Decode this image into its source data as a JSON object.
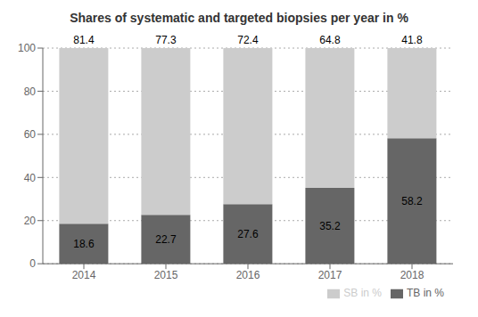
{
  "chart_data": {
    "type": "bar",
    "title": "Shares of systematic and targeted biopsies per year in %",
    "categories": [
      "2014",
      "2015",
      "2016",
      "2017",
      "2018"
    ],
    "series": [
      {
        "name": "TB in %",
        "color": "#666666",
        "values": [
          18.6,
          22.7,
          27.6,
          35.2,
          58.2
        ]
      },
      {
        "name": "SB in %",
        "color": "#cccccc",
        "values": [
          81.4,
          77.3,
          72.4,
          64.8,
          41.8
        ]
      }
    ],
    "stacked": true,
    "ylim": [
      0,
      100
    ],
    "yticks": [
      0,
      20,
      40,
      60,
      80,
      100
    ],
    "grid": true,
    "legend": "lower right",
    "data_labels": true
  }
}
